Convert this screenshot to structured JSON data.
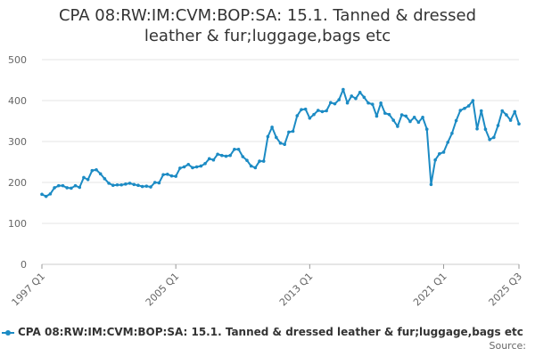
{
  "chart_data": {
    "type": "line",
    "title_lines": [
      "CPA 08:RW:IM:CVM:BOP:SA: 15.1. Tanned & dressed",
      "leather & fur;luggage,bags etc"
    ],
    "x_tick_labels": [
      "1997 Q1",
      "2005 Q1",
      "2013 Q1",
      "2021 Q1",
      "2025 Q3"
    ],
    "y_ticks": [
      0,
      100,
      200,
      300,
      400,
      500
    ],
    "ylim": [
      0,
      500
    ],
    "grid": true,
    "legend_position": "bottom",
    "series": [
      {
        "name": "CPA 08:RW:IM:CVM:BOP:SA: 15.1. Tanned & dressed leather & fur;luggage,bags etc",
        "color": "#1c8bc4",
        "x_start": "1997 Q1",
        "values": [
          171,
          166,
          172,
          187,
          192,
          192,
          187,
          186,
          192,
          188,
          212,
          207,
          229,
          231,
          221,
          209,
          198,
          193,
          194,
          194,
          196,
          198,
          195,
          193,
          190,
          191,
          189,
          200,
          199,
          219,
          220,
          216,
          215,
          235,
          238,
          244,
          236,
          238,
          240,
          246,
          258,
          255,
          269,
          266,
          264,
          266,
          281,
          281,
          263,
          254,
          240,
          236,
          252,
          252,
          312,
          335,
          310,
          296,
          293,
          323,
          325,
          363,
          378,
          379,
          357,
          366,
          376,
          373,
          375,
          395,
          392,
          402,
          427,
          394,
          411,
          405,
          420,
          408,
          394,
          391,
          362,
          394,
          369,
          366,
          352,
          337,
          365,
          362,
          349,
          359,
          347,
          359,
          330,
          195,
          255,
          270,
          274,
          298,
          320,
          351,
          376,
          381,
          387,
          400,
          331,
          375,
          330,
          305,
          310,
          339,
          375,
          365,
          352,
          373,
          343
        ]
      }
    ],
    "legend_label": "CPA 08:RW:IM:CVM:BOP:SA: 15.1. Tanned & dressed leather & fur;luggage,bags etc"
  },
  "footer": {
    "source_label": "Source:"
  }
}
